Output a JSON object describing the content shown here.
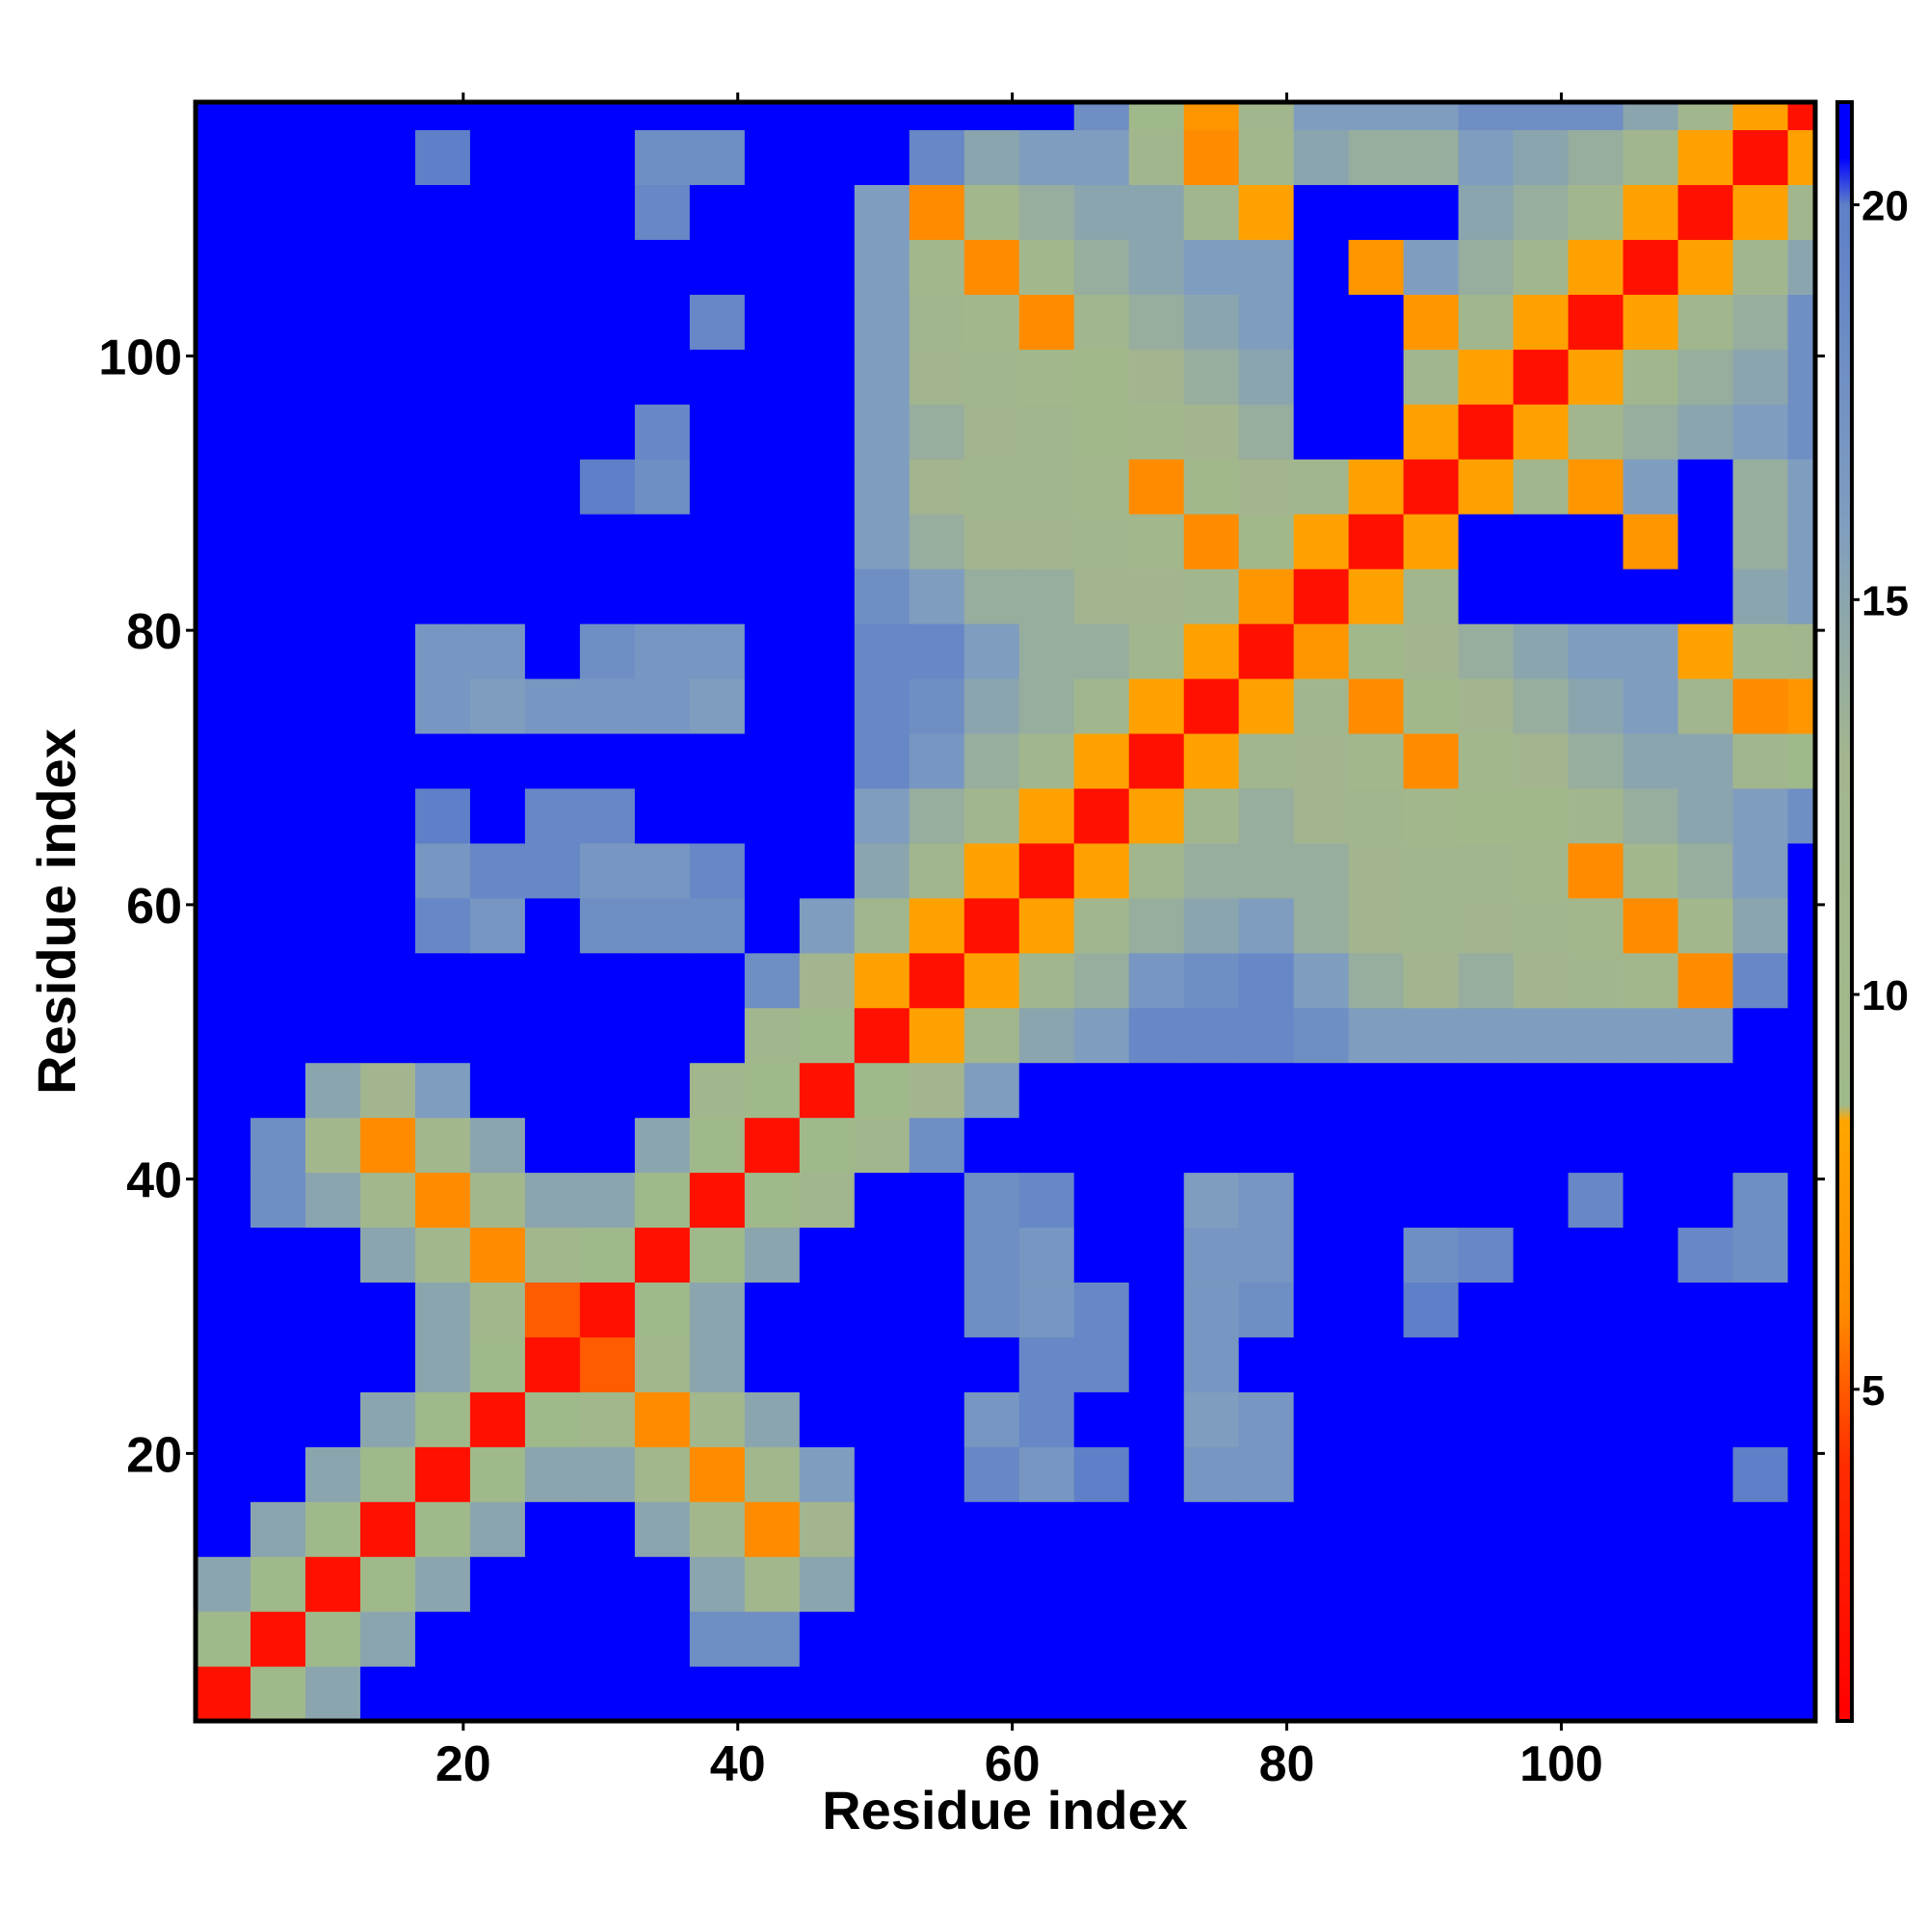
{
  "chart_data": {
    "type": "heatmap",
    "xlabel": "Residue index",
    "ylabel": "Residue index",
    "x": [
      2.5,
      6.5,
      10.5,
      14.5,
      18.5,
      22.5,
      26.5,
      30.5,
      34.5,
      38.5,
      42.5,
      46.5,
      50.5,
      54.5,
      58.5,
      62.5,
      66.5,
      70.5,
      74.5,
      78.5,
      82.5,
      86.5,
      90.5,
      94.5,
      98.5,
      102.5,
      106.5,
      110.5,
      114.5,
      118.5
    ],
    "y": [
      2.5,
      6.5,
      10.5,
      14.5,
      18.5,
      22.5,
      26.5,
      30.5,
      34.5,
      38.5,
      42.5,
      46.5,
      50.5,
      54.5,
      58.5,
      62.5,
      66.5,
      70.5,
      74.5,
      78.5,
      82.5,
      86.5,
      90.5,
      94.5,
      98.5,
      102.5,
      106.5,
      110.5,
      114.5,
      118.5
    ],
    "z": [
      [
        2,
        9,
        15,
        21,
        21,
        21,
        21,
        21,
        21,
        21,
        21,
        21,
        21,
        21,
        21,
        21,
        21,
        21,
        21,
        21,
        21,
        21,
        21,
        21,
        21,
        21,
        21,
        21,
        21,
        21
      ],
      [
        9,
        2,
        9,
        15,
        21,
        21,
        21,
        21,
        21,
        18,
        18,
        21,
        21,
        21,
        21,
        21,
        21,
        21,
        21,
        21,
        21,
        21,
        21,
        21,
        21,
        21,
        21,
        21,
        21,
        21
      ],
      [
        15,
        9,
        2,
        9,
        15,
        21,
        21,
        21,
        21,
        15,
        11,
        15,
        21,
        21,
        21,
        21,
        21,
        21,
        21,
        21,
        21,
        21,
        21,
        21,
        21,
        21,
        21,
        21,
        21,
        21
      ],
      [
        21,
        15,
        9,
        2,
        9,
        15,
        21,
        21,
        15,
        11,
        6,
        13,
        21,
        21,
        21,
        21,
        21,
        21,
        21,
        21,
        21,
        21,
        21,
        21,
        21,
        21,
        21,
        21,
        21,
        21
      ],
      [
        21,
        21,
        15,
        9,
        2,
        9,
        15,
        15,
        11,
        6,
        11,
        16,
        21,
        21,
        19,
        17,
        20,
        21,
        17,
        17,
        21,
        21,
        21,
        21,
        21,
        21,
        21,
        21,
        20,
        21
      ],
      [
        21,
        21,
        21,
        15,
        9,
        2,
        9,
        11,
        6,
        11,
        15,
        21,
        21,
        21,
        17,
        19,
        21,
        21,
        16,
        17,
        21,
        21,
        21,
        21,
        21,
        21,
        21,
        21,
        21,
        21
      ],
      [
        21,
        21,
        21,
        21,
        15,
        9,
        2,
        5,
        11,
        15,
        21,
        21,
        21,
        21,
        21,
        19,
        19,
        21,
        17,
        21,
        21,
        21,
        21,
        21,
        21,
        21,
        21,
        21,
        21,
        21
      ],
      [
        21,
        21,
        21,
        21,
        15,
        11,
        5,
        2,
        9,
        15,
        21,
        21,
        21,
        21,
        18,
        17,
        19,
        21,
        17,
        18,
        21,
        21,
        20,
        21,
        21,
        21,
        21,
        21,
        21,
        21
      ],
      [
        21,
        21,
        21,
        15,
        11,
        6,
        11,
        9,
        2,
        9,
        15,
        21,
        21,
        21,
        18,
        17,
        21,
        21,
        17,
        17,
        21,
        21,
        18,
        19,
        21,
        21,
        21,
        19,
        18,
        21
      ],
      [
        21,
        18,
        15,
        11,
        6,
        11,
        15,
        15,
        9,
        2,
        9,
        12,
        21,
        21,
        18,
        19,
        21,
        21,
        16,
        17,
        21,
        21,
        21,
        21,
        21,
        19,
        21,
        21,
        18,
        21
      ],
      [
        21,
        18,
        11,
        6,
        11,
        15,
        21,
        21,
        15,
        9,
        2,
        9,
        12,
        18,
        21,
        21,
        21,
        21,
        21,
        21,
        21,
        21,
        21,
        21,
        21,
        21,
        21,
        21,
        21,
        21
      ],
      [
        21,
        21,
        15,
        13,
        16,
        21,
        21,
        21,
        21,
        12,
        9,
        2,
        9,
        13,
        16,
        21,
        21,
        21,
        21,
        21,
        21,
        21,
        21,
        21,
        21,
        21,
        21,
        21,
        21,
        21
      ],
      [
        21,
        21,
        21,
        21,
        21,
        21,
        21,
        21,
        21,
        21,
        12,
        9,
        2,
        8,
        12,
        15,
        16,
        19,
        19,
        19,
        18,
        16,
        16,
        16,
        16,
        16,
        16,
        16,
        21,
        21
      ],
      [
        21,
        21,
        21,
        21,
        21,
        21,
        21,
        21,
        21,
        21,
        18,
        13,
        8,
        2,
        8,
        12,
        14,
        17,
        18,
        19,
        16,
        14,
        13,
        14,
        13,
        12,
        11,
        6,
        19,
        21
      ],
      [
        21,
        21,
        21,
        21,
        19,
        17,
        21,
        18,
        18,
        18,
        21,
        16,
        12,
        8,
        2,
        8,
        12,
        14,
        15,
        16,
        14,
        13,
        12,
        13,
        12,
        11,
        6,
        11,
        15,
        21
      ],
      [
        21,
        21,
        21,
        21,
        17,
        19,
        19,
        17,
        17,
        19,
        21,
        21,
        15,
        12,
        8,
        2,
        8,
        12,
        14,
        14,
        14,
        13,
        12,
        12,
        11,
        6,
        11,
        14,
        16,
        21
      ],
      [
        21,
        21,
        21,
        21,
        20,
        21,
        19,
        19,
        21,
        21,
        21,
        21,
        16,
        14,
        12,
        8,
        2,
        8,
        12,
        14,
        13,
        12,
        11,
        10,
        10,
        12,
        14,
        15,
        16,
        18
      ],
      [
        21,
        21,
        21,
        21,
        21,
        21,
        21,
        21,
        21,
        21,
        21,
        21,
        19,
        17,
        14,
        12,
        8,
        2,
        8,
        12,
        13,
        11,
        6,
        11,
        13,
        14,
        15,
        15,
        12,
        9
      ],
      [
        21,
        21,
        21,
        21,
        17,
        16,
        17,
        17,
        17,
        16,
        21,
        21,
        19,
        18,
        15,
        14,
        12,
        8,
        2,
        8,
        12,
        6,
        10,
        13,
        14,
        15,
        16,
        12,
        6,
        7
      ],
      [
        21,
        21,
        21,
        21,
        17,
        17,
        21,
        18,
        17,
        17,
        21,
        21,
        19,
        19,
        16,
        14,
        14,
        12,
        8,
        2,
        7,
        10,
        13,
        14,
        15,
        16,
        16,
        8,
        11,
        12
      ],
      [
        21,
        21,
        21,
        21,
        21,
        21,
        21,
        21,
        21,
        21,
        21,
        21,
        18,
        16,
        14,
        14,
        13,
        13,
        12,
        7,
        2,
        8,
        12,
        21,
        21,
        21,
        21,
        21,
        15,
        16
      ],
      [
        21,
        21,
        21,
        21,
        21,
        21,
        21,
        21,
        21,
        21,
        21,
        21,
        16,
        14,
        13,
        13,
        12,
        11,
        6,
        10,
        8,
        2,
        8,
        21,
        21,
        21,
        7,
        21,
        14,
        16
      ],
      [
        21,
        21,
        21,
        21,
        21,
        21,
        21,
        20,
        18,
        21,
        21,
        21,
        16,
        13,
        12,
        12,
        11,
        6,
        10,
        13,
        12,
        8,
        2,
        8,
        12,
        7,
        16,
        21,
        14,
        16
      ],
      [
        21,
        21,
        21,
        21,
        21,
        21,
        21,
        21,
        19,
        21,
        21,
        21,
        16,
        14,
        13,
        12,
        10,
        11,
        13,
        14,
        21,
        21,
        8,
        2,
        8,
        12,
        14,
        15,
        16,
        18
      ],
      [
        21,
        21,
        21,
        21,
        21,
        21,
        21,
        21,
        21,
        21,
        21,
        21,
        16,
        13,
        12,
        11,
        10,
        13,
        14,
        15,
        21,
        21,
        12,
        8,
        2,
        8,
        12,
        14,
        15,
        18
      ],
      [
        21,
        21,
        21,
        21,
        21,
        21,
        21,
        21,
        21,
        19,
        21,
        21,
        16,
        12,
        11,
        6,
        12,
        14,
        15,
        16,
        21,
        21,
        7,
        12,
        8,
        2,
        8,
        12,
        14,
        18
      ],
      [
        21,
        21,
        21,
        21,
        21,
        21,
        21,
        21,
        21,
        21,
        21,
        21,
        16,
        11,
        6,
        11,
        14,
        15,
        16,
        16,
        21,
        7,
        16,
        14,
        12,
        8,
        2,
        8,
        12,
        15
      ],
      [
        21,
        21,
        21,
        21,
        21,
        21,
        21,
        21,
        19,
        21,
        21,
        21,
        16,
        6,
        11,
        14,
        15,
        15,
        12,
        8,
        21,
        21,
        21,
        15,
        14,
        12,
        8,
        2,
        8,
        12
      ],
      [
        21,
        21,
        21,
        21,
        20,
        21,
        21,
        21,
        18,
        18,
        21,
        21,
        21,
        19,
        15,
        16,
        16,
        12,
        6,
        11,
        15,
        14,
        14,
        16,
        15,
        14,
        12,
        8,
        2,
        8
      ],
      [
        21,
        21,
        21,
        21,
        21,
        21,
        21,
        21,
        21,
        21,
        21,
        21,
        21,
        21,
        21,
        21,
        18,
        9,
        7,
        12,
        16,
        16,
        16,
        18,
        18,
        18,
        15,
        12,
        8,
        2
      ]
    ],
    "xlim": [
      0.5,
      118.5
    ],
    "ylim": [
      0.5,
      118.5
    ],
    "xticks": [
      20,
      40,
      60,
      80,
      100
    ],
    "yticks": [
      20,
      40,
      60,
      80,
      100
    ],
    "clim": [
      0.8,
      21.3
    ],
    "cticks": [
      5,
      10,
      15,
      20
    ],
    "colormap": [
      [
        0.8,
        "#ff0000"
      ],
      [
        4,
        "#ff2a00"
      ],
      [
        6,
        "#ff8c00"
      ],
      [
        8.4,
        "#ffa500"
      ],
      [
        8.6,
        "#a0b98a"
      ],
      [
        13,
        "#a3b58e"
      ],
      [
        16,
        "#7f9dbf"
      ],
      [
        20,
        "#5f7fc8"
      ],
      [
        20.6,
        "#0000ff"
      ],
      [
        21.3,
        "#0000ff"
      ]
    ]
  }
}
